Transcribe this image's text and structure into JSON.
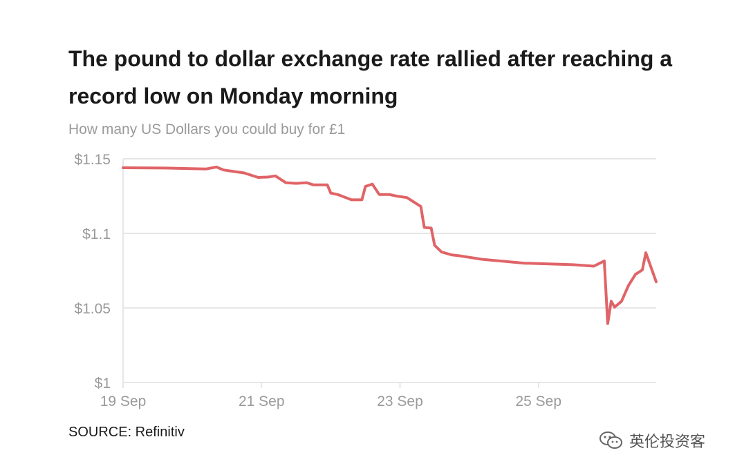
{
  "header": {
    "title": "The pound to dollar exchange rate rallied after reaching a record low on Monday morning",
    "subtitle": "How many US Dollars you could buy for £1"
  },
  "footer": {
    "source": "SOURCE: Refinitiv"
  },
  "watermark": {
    "text": "英伦投资客",
    "icon": "wechat-icon"
  },
  "colors": {
    "line": "#e06467",
    "grid": "#e6e6e6",
    "axis_text": "#9a9a9a",
    "title_text": "#1a1a1a"
  },
  "chart_data": {
    "type": "line",
    "title": "The pound to dollar exchange rate rallied after reaching a record low on Monday morning",
    "subtitle": "How many US Dollars you could buy for £1",
    "xlabel": "",
    "ylabel": "",
    "x_ticks": [
      "19 Sep",
      "21 Sep",
      "23 Sep",
      "25 Sep"
    ],
    "x_tick_values": [
      19,
      21,
      23,
      25
    ],
    "y_ticks": [
      "$1",
      "$1.05",
      "$1.1",
      "$1.15"
    ],
    "y_tick_values": [
      1.0,
      1.05,
      1.1,
      1.15
    ],
    "xlim": [
      19,
      26.7
    ],
    "ylim": [
      1.0,
      1.15
    ],
    "grid": "horizontal",
    "legend": "none",
    "series": [
      {
        "x": [
          19.0,
          19.6,
          20.2,
          20.35,
          20.45,
          20.6,
          20.75,
          20.95,
          21.1,
          21.2,
          21.35,
          21.5,
          21.65,
          21.75,
          21.95,
          22.0,
          22.1,
          22.3,
          22.45,
          22.5,
          22.6,
          22.7,
          22.85,
          22.95,
          23.1,
          23.3,
          23.35,
          23.45,
          23.5,
          23.6,
          23.75,
          23.85,
          24.2,
          24.8,
          25.5,
          25.8,
          25.95,
          26.0,
          26.05,
          26.1,
          26.2,
          26.3,
          26.4,
          26.5,
          26.55,
          26.7
        ],
        "y": [
          1.144,
          1.1438,
          1.1432,
          1.1445,
          1.1425,
          1.1415,
          1.1405,
          1.1375,
          1.1378,
          1.1385,
          1.134,
          1.1335,
          1.134,
          1.1325,
          1.1325,
          1.127,
          1.126,
          1.1225,
          1.1225,
          1.1315,
          1.133,
          1.126,
          1.126,
          1.125,
          1.124,
          1.118,
          1.104,
          1.1035,
          1.092,
          1.0875,
          1.0855,
          1.085,
          1.0825,
          1.08,
          1.079,
          1.078,
          1.0815,
          1.0395,
          1.0545,
          1.0505,
          1.0545,
          1.065,
          1.0725,
          1.0755,
          1.087,
          1.0675
        ]
      }
    ]
  }
}
